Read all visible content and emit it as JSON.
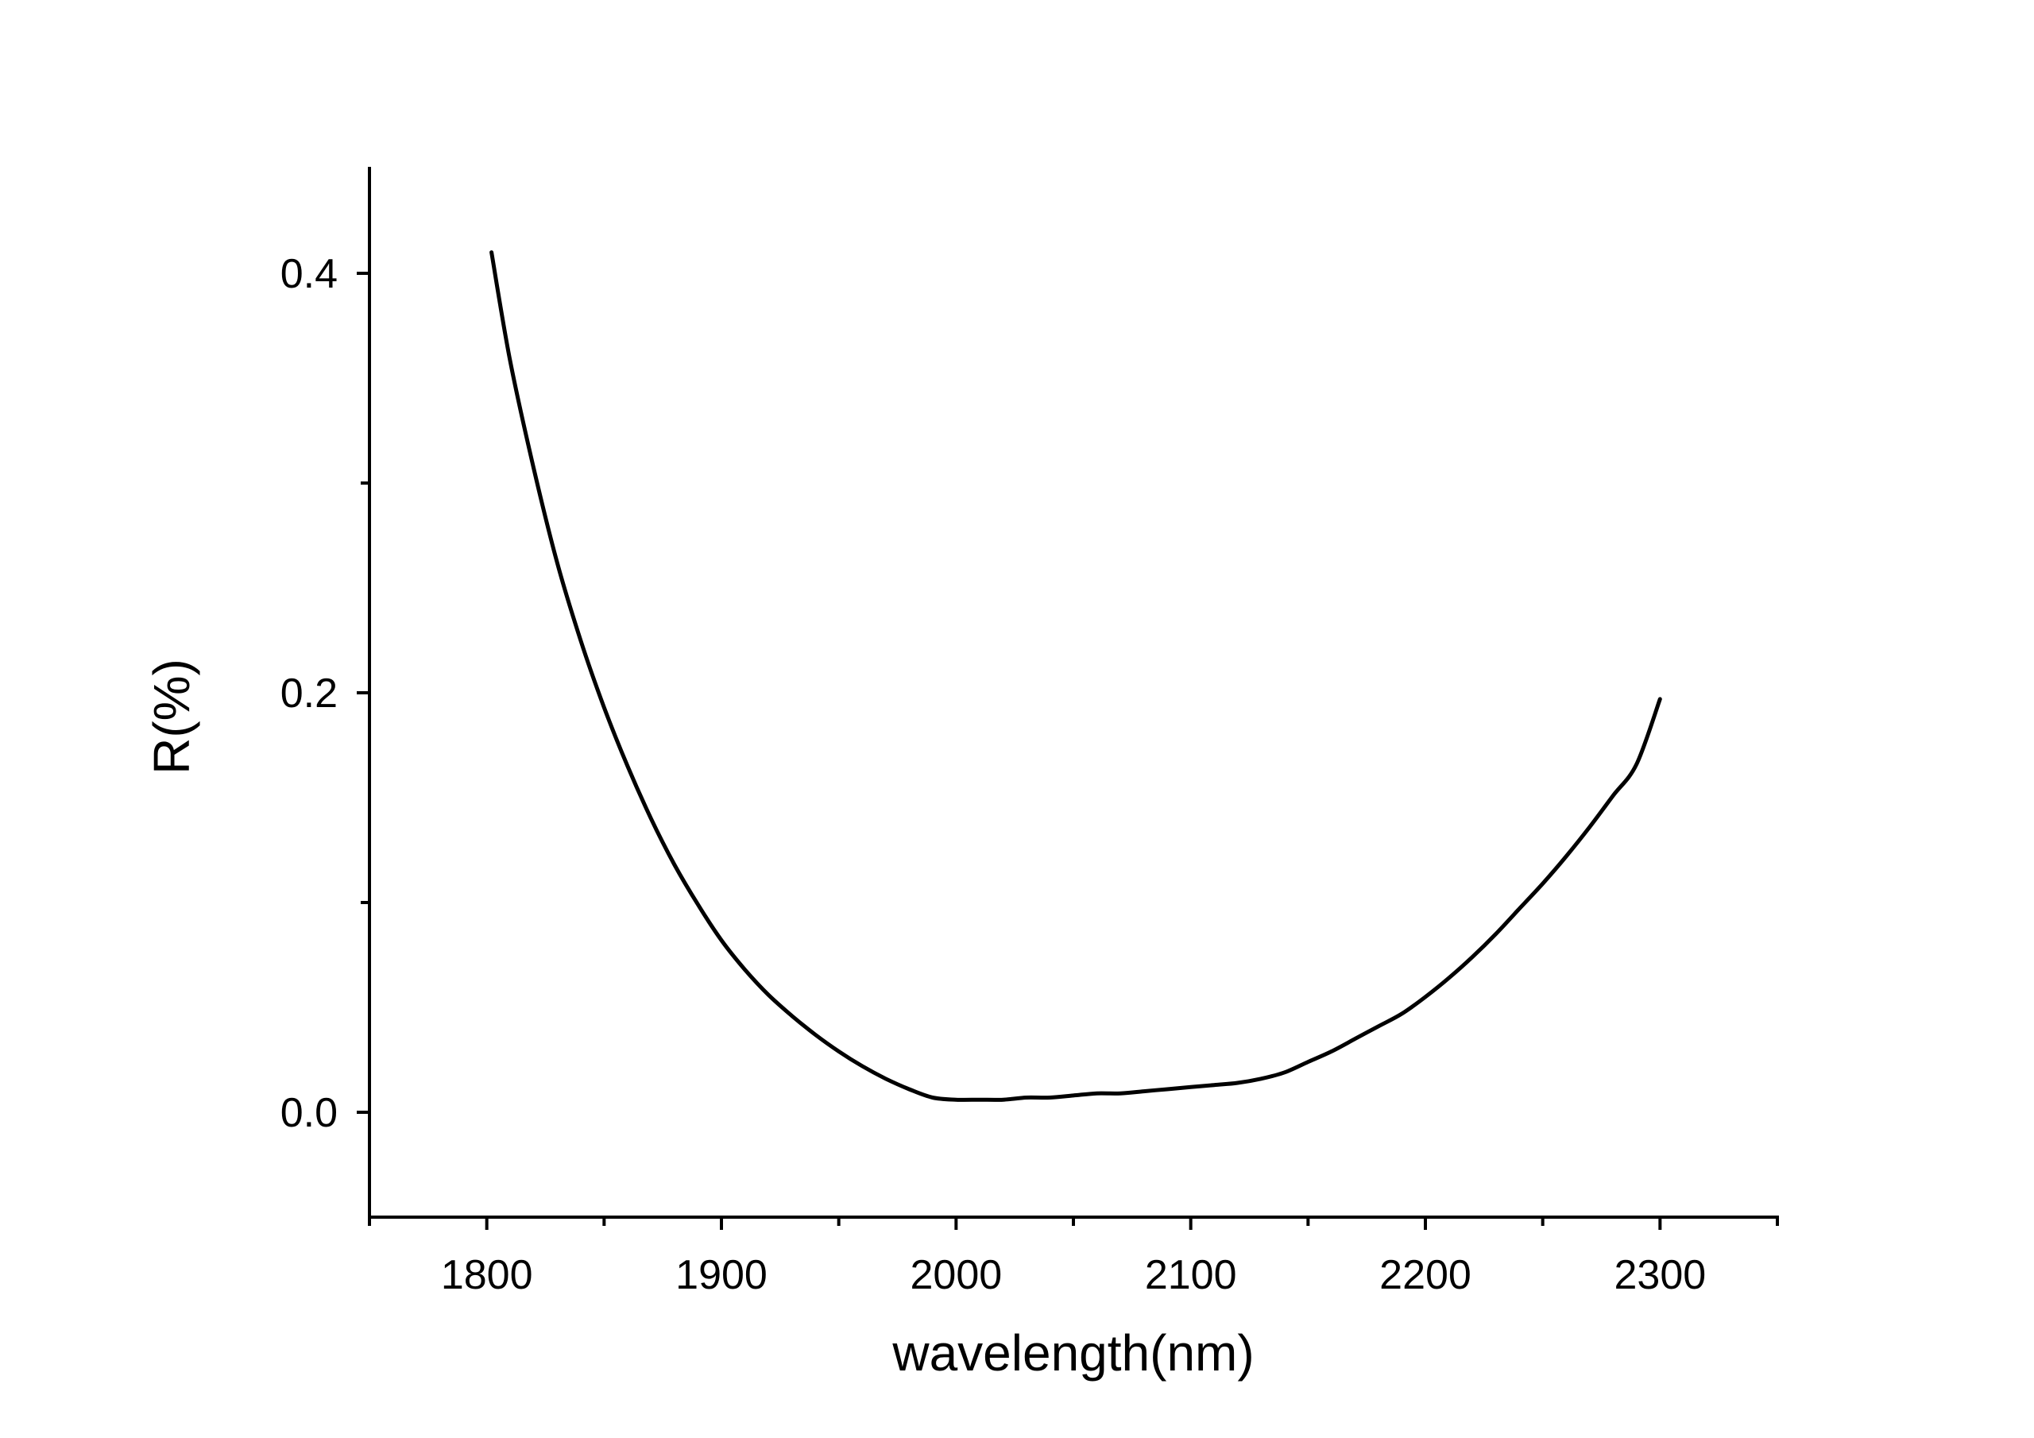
{
  "chart_data": {
    "type": "line",
    "title": "",
    "xlabel": "wavelength(nm)",
    "ylabel": "R(%)",
    "xlim": [
      1750,
      2350
    ],
    "ylim": [
      -0.05,
      0.45
    ],
    "x_major_ticks": [
      1800,
      1900,
      2000,
      2100,
      2200,
      2300
    ],
    "x_tick_labels": [
      "1800",
      "1900",
      "2000",
      "2100",
      "2200",
      "2300"
    ],
    "x_minor_ticks": [
      1750,
      1850,
      1950,
      2050,
      2150,
      2250,
      2350
    ],
    "y_major_ticks": [
      0.0,
      0.2,
      0.4
    ],
    "y_tick_labels": [
      "0.0",
      "0.2",
      "0.4"
    ],
    "y_minor_ticks": [
      0.1,
      0.3
    ],
    "grid": false,
    "line_color": "#000000",
    "series": [
      {
        "x": [
          1802,
          1810,
          1820,
          1830,
          1840,
          1850,
          1860,
          1870,
          1880,
          1890,
          1900,
          1910,
          1920,
          1930,
          1940,
          1950,
          1960,
          1970,
          1980,
          1990,
          2000,
          2010,
          2020,
          2030,
          2040,
          2050,
          2060,
          2070,
          2080,
          2090,
          2100,
          2110,
          2120,
          2130,
          2140,
          2150,
          2160,
          2170,
          2180,
          2190,
          2200,
          2210,
          2220,
          2230,
          2240,
          2250,
          2260,
          2270,
          2280,
          2290,
          2300
        ],
        "y": [
          0.41,
          0.358,
          0.307,
          0.262,
          0.225,
          0.193,
          0.165,
          0.14,
          0.118,
          0.099,
          0.082,
          0.068,
          0.056,
          0.046,
          0.037,
          0.029,
          0.022,
          0.016,
          0.011,
          0.007,
          0.006,
          0.006,
          0.006,
          0.007,
          0.007,
          0.008,
          0.009,
          0.009,
          0.01,
          0.011,
          0.012,
          0.013,
          0.014,
          0.016,
          0.019,
          0.024,
          0.029,
          0.035,
          0.041,
          0.047,
          0.055,
          0.064,
          0.074,
          0.085,
          0.097,
          0.109,
          0.122,
          0.136,
          0.151,
          0.166,
          0.197
        ]
      }
    ]
  }
}
